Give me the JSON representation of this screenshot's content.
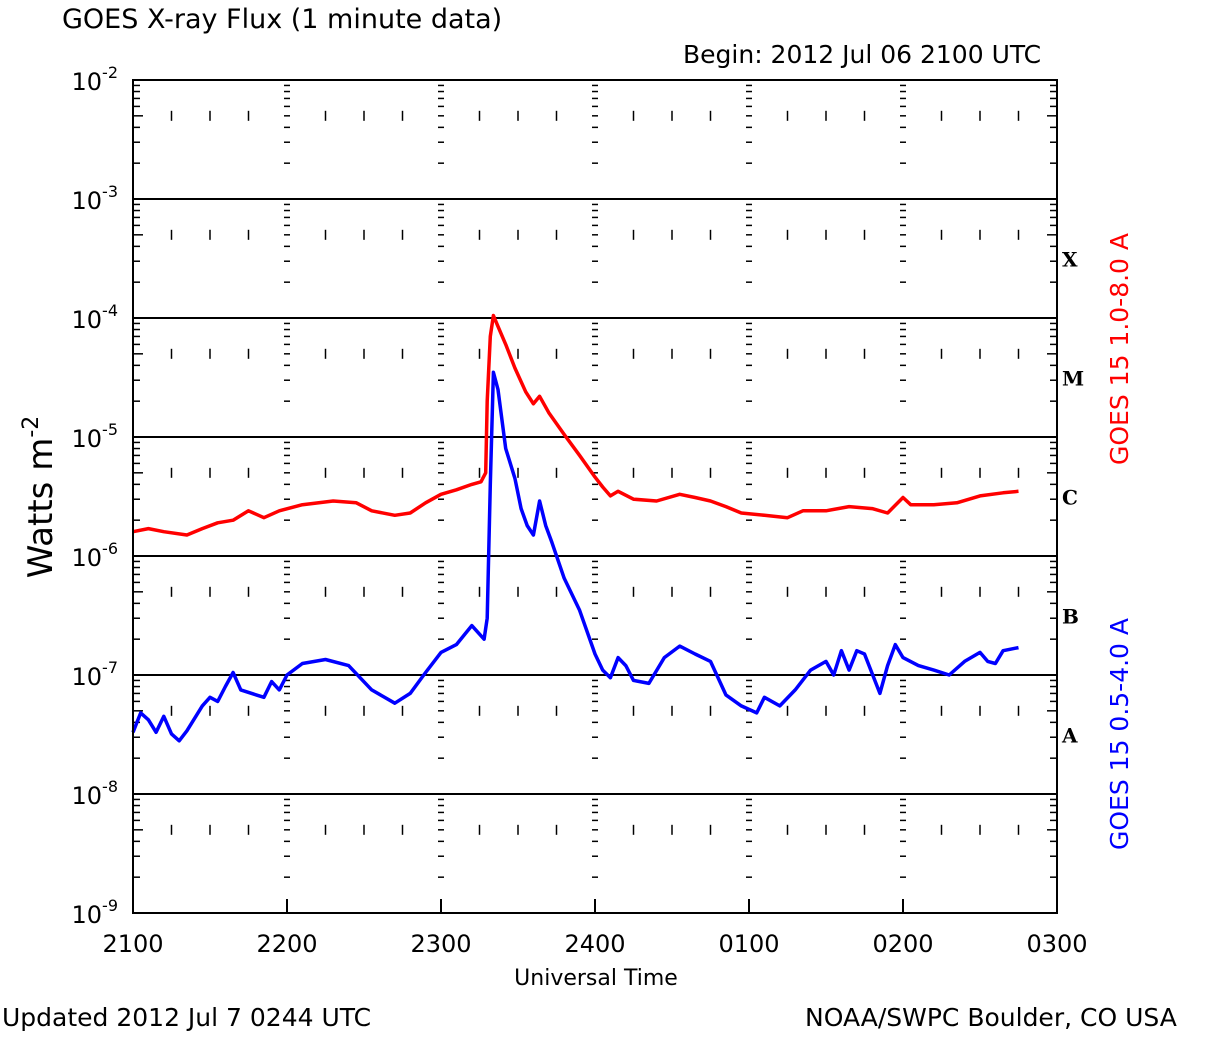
{
  "header": {
    "title": "GOES X-ray Flux (1 minute data)",
    "begin": "Begin: 2012 Jul 06 2100 UTC"
  },
  "footer": {
    "updated": "Updated 2012 Jul  7 0244 UTC",
    "credit": "NOAA/SWPC Boulder, CO USA"
  },
  "colors": {
    "long_channel": "#ff0000",
    "short_channel": "#0000ff",
    "axes": "#000000"
  },
  "chart_data": {
    "type": "line",
    "xlabel": "Universal Time",
    "ylabel_base": "Watts m",
    "ylabel_exp": "-2",
    "x_unit": "hours after 2012 Jul 06 2100 UTC",
    "xlim": [
      0,
      6
    ],
    "y_scale": "log",
    "ylim": [
      1e-09,
      0.01
    ],
    "x_ticks": [
      {
        "x": 0,
        "label": "2100"
      },
      {
        "x": 1,
        "label": "2200"
      },
      {
        "x": 2,
        "label": "2300"
      },
      {
        "x": 3,
        "label": "2400"
      },
      {
        "x": 4,
        "label": "0100"
      },
      {
        "x": 5,
        "label": "0200"
      },
      {
        "x": 6,
        "label": "0300"
      }
    ],
    "y_ticks": [
      {
        "exp": -9,
        "base": "10",
        "sup": "-9"
      },
      {
        "exp": -8,
        "base": "10",
        "sup": "-8"
      },
      {
        "exp": -7,
        "base": "10",
        "sup": "-7"
      },
      {
        "exp": -6,
        "base": "10",
        "sup": "-6"
      },
      {
        "exp": -5,
        "base": "10",
        "sup": "-5"
      },
      {
        "exp": -4,
        "base": "10",
        "sup": "-4"
      },
      {
        "exp": -3,
        "base": "10",
        "sup": "-3"
      },
      {
        "exp": -2,
        "base": "10",
        "sup": "-2"
      }
    ],
    "gridlines_y": [
      -8,
      -7,
      -6,
      -5,
      -4,
      -3
    ],
    "flare_classes": [
      {
        "label": "A",
        "exp": -7.5
      },
      {
        "label": "B",
        "exp": -6.5
      },
      {
        "label": "C",
        "exp": -5.5
      },
      {
        "label": "M",
        "exp": -4.5
      },
      {
        "label": "X",
        "exp": -3.5
      }
    ],
    "series": [
      {
        "name": "GOES 15 1.0-8.0 A",
        "color": "#ff0000",
        "points": [
          [
            0.0,
            1.6e-06
          ],
          [
            0.1,
            1.7e-06
          ],
          [
            0.2,
            1.6e-06
          ],
          [
            0.35,
            1.5e-06
          ],
          [
            0.45,
            1.7e-06
          ],
          [
            0.55,
            1.9e-06
          ],
          [
            0.65,
            2e-06
          ],
          [
            0.75,
            2.4e-06
          ],
          [
            0.85,
            2.1e-06
          ],
          [
            0.95,
            2.4e-06
          ],
          [
            1.1,
            2.7e-06
          ],
          [
            1.3,
            2.9e-06
          ],
          [
            1.45,
            2.8e-06
          ],
          [
            1.55,
            2.4e-06
          ],
          [
            1.7,
            2.2e-06
          ],
          [
            1.8,
            2.3e-06
          ],
          [
            1.9,
            2.8e-06
          ],
          [
            2.0,
            3.3e-06
          ],
          [
            2.1,
            3.6e-06
          ],
          [
            2.2,
            4e-06
          ],
          [
            2.26,
            4.2e-06
          ],
          [
            2.29,
            5e-06
          ],
          [
            2.3,
            2e-05
          ],
          [
            2.32,
            7e-05
          ],
          [
            2.34,
            0.000105
          ],
          [
            2.37,
            8.5e-05
          ],
          [
            2.42,
            6e-05
          ],
          [
            2.48,
            3.8e-05
          ],
          [
            2.55,
            2.4e-05
          ],
          [
            2.6,
            1.9e-05
          ],
          [
            2.64,
            2.2e-05
          ],
          [
            2.7,
            1.6e-05
          ],
          [
            2.8,
            1.05e-05
          ],
          [
            2.9,
            7e-06
          ],
          [
            3.0,
            4.6e-06
          ],
          [
            3.05,
            3.8e-06
          ],
          [
            3.1,
            3.2e-06
          ],
          [
            3.15,
            3.5e-06
          ],
          [
            3.25,
            3e-06
          ],
          [
            3.4,
            2.9e-06
          ],
          [
            3.55,
            3.3e-06
          ],
          [
            3.65,
            3.1e-06
          ],
          [
            3.75,
            2.9e-06
          ],
          [
            3.85,
            2.6e-06
          ],
          [
            3.95,
            2.3e-06
          ],
          [
            4.1,
            2.2e-06
          ],
          [
            4.25,
            2.1e-06
          ],
          [
            4.35,
            2.4e-06
          ],
          [
            4.5,
            2.4e-06
          ],
          [
            4.65,
            2.6e-06
          ],
          [
            4.8,
            2.5e-06
          ],
          [
            4.9,
            2.3e-06
          ],
          [
            5.0,
            3.1e-06
          ],
          [
            5.05,
            2.7e-06
          ],
          [
            5.2,
            2.7e-06
          ],
          [
            5.35,
            2.8e-06
          ],
          [
            5.5,
            3.2e-06
          ],
          [
            5.65,
            3.4e-06
          ],
          [
            5.75,
            3.5e-06
          ]
        ]
      },
      {
        "name": "GOES 15 0.5-4.0 A",
        "color": "#0000ff",
        "points": [
          [
            0.0,
            3.3e-08
          ],
          [
            0.05,
            4.8e-08
          ],
          [
            0.1,
            4.2e-08
          ],
          [
            0.15,
            3.3e-08
          ],
          [
            0.2,
            4.5e-08
          ],
          [
            0.25,
            3.2e-08
          ],
          [
            0.3,
            2.8e-08
          ],
          [
            0.35,
            3.4e-08
          ],
          [
            0.45,
            5.5e-08
          ],
          [
            0.5,
            6.5e-08
          ],
          [
            0.55,
            6e-08
          ],
          [
            0.6,
            8e-08
          ],
          [
            0.65,
            1.05e-07
          ],
          [
            0.7,
            7.5e-08
          ],
          [
            0.8,
            6.8e-08
          ],
          [
            0.85,
            6.5e-08
          ],
          [
            0.9,
            8.8e-08
          ],
          [
            0.95,
            7.5e-08
          ],
          [
            1.0,
            1e-07
          ],
          [
            1.1,
            1.25e-07
          ],
          [
            1.25,
            1.35e-07
          ],
          [
            1.4,
            1.2e-07
          ],
          [
            1.55,
            7.5e-08
          ],
          [
            1.7,
            5.8e-08
          ],
          [
            1.8,
            7e-08
          ],
          [
            1.9,
            1.05e-07
          ],
          [
            2.0,
            1.55e-07
          ],
          [
            2.1,
            1.8e-07
          ],
          [
            2.2,
            2.6e-07
          ],
          [
            2.28,
            2e-07
          ],
          [
            2.3,
            3e-07
          ],
          [
            2.32,
            4e-06
          ],
          [
            2.34,
            3.5e-05
          ],
          [
            2.37,
            2.5e-05
          ],
          [
            2.42,
            8e-06
          ],
          [
            2.48,
            4.5e-06
          ],
          [
            2.52,
            2.5e-06
          ],
          [
            2.56,
            1.8e-06
          ],
          [
            2.6,
            1.5e-06
          ],
          [
            2.64,
            2.9e-06
          ],
          [
            2.68,
            1.8e-06
          ],
          [
            2.72,
            1.3e-06
          ],
          [
            2.8,
            6.5e-07
          ],
          [
            2.9,
            3.5e-07
          ],
          [
            3.0,
            1.5e-07
          ],
          [
            3.05,
            1.1e-07
          ],
          [
            3.1,
            9.5e-08
          ],
          [
            3.15,
            1.4e-07
          ],
          [
            3.2,
            1.2e-07
          ],
          [
            3.25,
            9e-08
          ],
          [
            3.35,
            8.5e-08
          ],
          [
            3.45,
            1.4e-07
          ],
          [
            3.55,
            1.75e-07
          ],
          [
            3.65,
            1.5e-07
          ],
          [
            3.75,
            1.3e-07
          ],
          [
            3.85,
            6.8e-08
          ],
          [
            3.95,
            5.5e-08
          ],
          [
            4.05,
            4.8e-08
          ],
          [
            4.1,
            6.5e-08
          ],
          [
            4.2,
            5.5e-08
          ],
          [
            4.3,
            7.5e-08
          ],
          [
            4.4,
            1.1e-07
          ],
          [
            4.5,
            1.3e-07
          ],
          [
            4.55,
            1e-07
          ],
          [
            4.6,
            1.6e-07
          ],
          [
            4.65,
            1.1e-07
          ],
          [
            4.7,
            1.6e-07
          ],
          [
            4.75,
            1.5e-07
          ],
          [
            4.85,
            7e-08
          ],
          [
            4.9,
            1.2e-07
          ],
          [
            4.95,
            1.8e-07
          ],
          [
            5.0,
            1.4e-07
          ],
          [
            5.1,
            1.2e-07
          ],
          [
            5.2,
            1.1e-07
          ],
          [
            5.3,
            1e-07
          ],
          [
            5.4,
            1.3e-07
          ],
          [
            5.5,
            1.55e-07
          ],
          [
            5.55,
            1.3e-07
          ],
          [
            5.6,
            1.25e-07
          ],
          [
            5.65,
            1.6e-07
          ],
          [
            5.75,
            1.7e-07
          ]
        ]
      }
    ]
  }
}
